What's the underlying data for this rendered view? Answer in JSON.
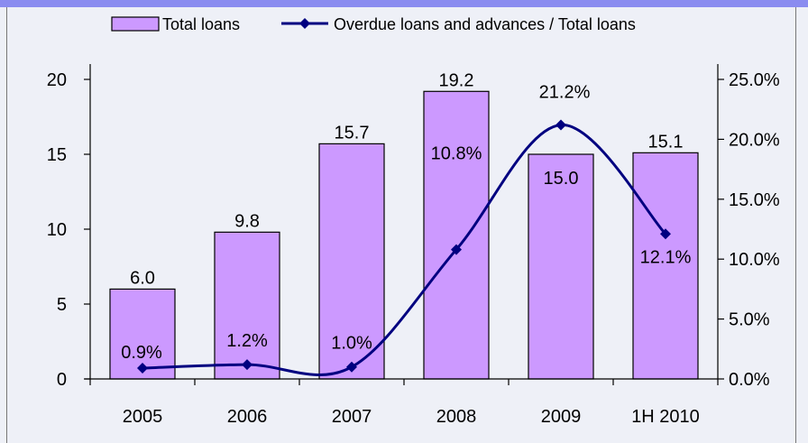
{
  "chart_data": {
    "type": "bar",
    "categories": [
      "2005",
      "2006",
      "2007",
      "2008",
      "2009",
      "1H 2010"
    ],
    "series": [
      {
        "name": "Total loans",
        "type": "bar",
        "axis": "left",
        "values": [
          6.0,
          9.8,
          15.7,
          19.2,
          15.0,
          15.1
        ],
        "labels": [
          "6.0",
          "9.8",
          "15.7",
          "19.2",
          "15.0",
          "15.1"
        ]
      },
      {
        "name": "Overdue loans and advances / Total loans",
        "type": "line",
        "axis": "right",
        "values": [
          0.9,
          1.2,
          1.0,
          10.8,
          21.2,
          12.1
        ],
        "labels": [
          "0.9%",
          "1.2%",
          "1.0%",
          "10.8%",
          "21.2%",
          "12.1%"
        ]
      }
    ],
    "left_axis": {
      "ylim": [
        0,
        20
      ],
      "ticks": [
        "0",
        "5",
        "10",
        "15",
        "20"
      ]
    },
    "right_axis": {
      "ylim": [
        0,
        25
      ],
      "ticks": [
        "0.0%",
        "5.0%",
        "10.0%",
        "15.0%",
        "20.0%",
        "25.0%"
      ]
    },
    "legend_position": "top",
    "grid": false,
    "colors": {
      "bar_fill": "#cc99ff",
      "bar_stroke": "#000000",
      "line": "#000080",
      "marker": "#000080",
      "background": "#eef0f7",
      "top_bar": "#8a8cf0"
    }
  }
}
